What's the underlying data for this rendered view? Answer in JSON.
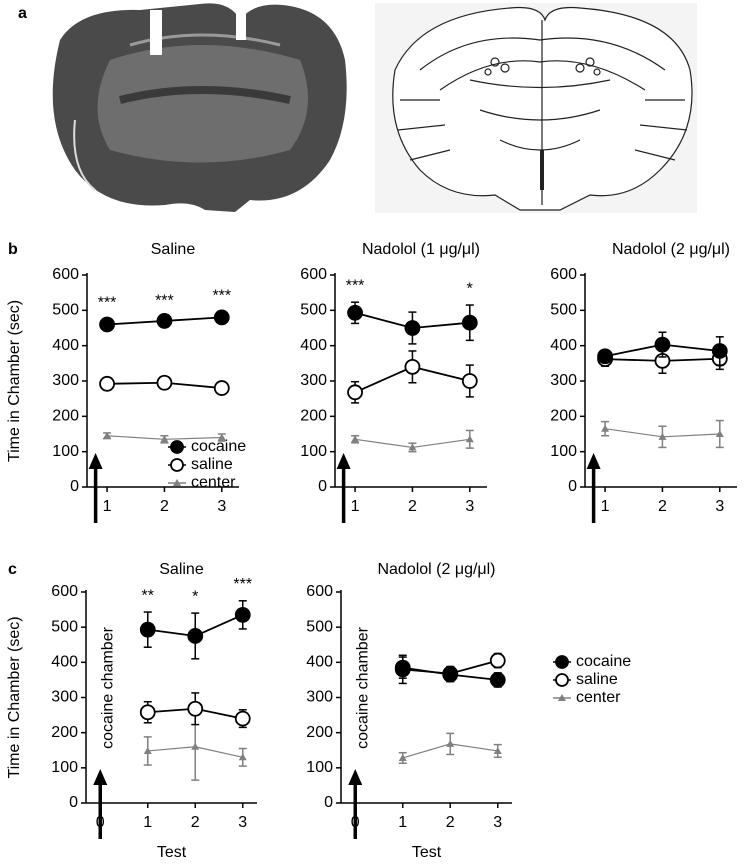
{
  "panel_labels": [
    "a",
    "b",
    "c"
  ],
  "chart_data": [
    {
      "type": "line",
      "title": "Saline",
      "ylabel": "Time in Chamber (sec)",
      "x": [
        1,
        2,
        3
      ],
      "xlim": [
        0.65,
        3.3
      ],
      "xticks": [
        1,
        2,
        3
      ],
      "ylim": [
        0,
        600
      ],
      "yticks": [
        0,
        100,
        200,
        300,
        400,
        500,
        600
      ],
      "legend": "lower right",
      "series": [
        {
          "name": "cocaine",
          "color": "#000000",
          "marker": "filled",
          "values": [
            460,
            470,
            480
          ],
          "errors": [
            15,
            10,
            15
          ]
        },
        {
          "name": "saline",
          "color": "#000000",
          "marker": "open",
          "values": [
            292,
            295,
            280
          ],
          "errors": [
            12,
            10,
            12
          ]
        },
        {
          "name": "center",
          "color": "#808080",
          "marker": "triangle",
          "values": [
            145,
            135,
            140
          ],
          "errors": [
            8,
            10,
            10
          ]
        }
      ],
      "annotations": [
        {
          "text": "***",
          "x": 1
        },
        {
          "text": "***",
          "x": 2
        },
        {
          "text": "***",
          "x": 3
        }
      ],
      "arrow": {
        "x": 0.8
      }
    },
    {
      "type": "line",
      "title": "Nadolol (1 μg/μl)",
      "x": [
        1,
        2,
        3
      ],
      "xlim": [
        0.65,
        3.3
      ],
      "xticks": [
        1,
        2,
        3
      ],
      "ylim": [
        0,
        600
      ],
      "yticks": [
        0,
        100,
        200,
        300,
        400,
        500,
        600
      ],
      "series": [
        {
          "color": "#000000",
          "marker": "filled",
          "values": [
            493,
            450,
            465
          ],
          "errors": [
            30,
            45,
            50
          ]
        },
        {
          "color": "#000000",
          "marker": "open",
          "values": [
            268,
            340,
            300
          ],
          "errors": [
            30,
            45,
            45
          ]
        },
        {
          "color": "#808080",
          "marker": "triangle",
          "values": [
            135,
            112,
            135
          ],
          "errors": [
            10,
            12,
            25
          ]
        }
      ],
      "annotations": [
        {
          "text": "***",
          "x": 1
        },
        {
          "text": "*",
          "x": 3
        }
      ],
      "arrow": {
        "x": 0.8
      }
    },
    {
      "type": "line",
      "title": "Nadolol (2 μg/μl)",
      "x": [
        1,
        2,
        3
      ],
      "xlim": [
        0.65,
        3.3
      ],
      "xticks": [
        1,
        2,
        3
      ],
      "ylim": [
        0,
        600
      ],
      "yticks": [
        0,
        100,
        200,
        300,
        400,
        500,
        600
      ],
      "series": [
        {
          "color": "#000000",
          "marker": "filled",
          "values": [
            370,
            403,
            385
          ],
          "errors": [
            15,
            35,
            40
          ]
        },
        {
          "color": "#000000",
          "marker": "open",
          "values": [
            362,
            357,
            363
          ],
          "errors": [
            20,
            35,
            30
          ]
        },
        {
          "color": "#808080",
          "marker": "triangle",
          "values": [
            165,
            142,
            150
          ],
          "errors": [
            20,
            30,
            38
          ]
        }
      ],
      "arrow": {
        "x": 0.8
      }
    },
    {
      "type": "line",
      "title": "Saline",
      "ylabel": "Time in Chamber (sec)",
      "xlabel": "Test",
      "x": [
        1,
        2,
        3
      ],
      "xlim": [
        -0.3,
        3.3
      ],
      "xticks": [
        0,
        1,
        2,
        3
      ],
      "ylim": [
        0,
        600
      ],
      "yticks": [
        0,
        100,
        200,
        300,
        400,
        500,
        600
      ],
      "series": [
        {
          "color": "#000000",
          "marker": "filled",
          "values": [
            493,
            475,
            535
          ],
          "errors": [
            50,
            65,
            40
          ]
        },
        {
          "color": "#000000",
          "marker": "open",
          "values": [
            258,
            268,
            240
          ],
          "errors": [
            30,
            45,
            25
          ]
        },
        {
          "color": "#808080",
          "marker": "triangle",
          "values": [
            148,
            160,
            130
          ],
          "errors": [
            40,
            95,
            25
          ]
        }
      ],
      "annotations": [
        {
          "text": "**",
          "x": 1
        },
        {
          "text": "*",
          "x": 2
        },
        {
          "text": "***",
          "x": 3
        }
      ],
      "arrow": {
        "x": 0,
        "label": "cocaine chamber"
      }
    },
    {
      "type": "line",
      "title": "Nadolol (2 μg/μl)",
      "xlabel": "Test",
      "x": [
        1,
        2,
        3
      ],
      "xlim": [
        -0.3,
        3.3
      ],
      "xticks": [
        0,
        1,
        2,
        3
      ],
      "ylim": [
        0,
        600
      ],
      "yticks": [
        0,
        100,
        200,
        300,
        400,
        500,
        600
      ],
      "legend": "right",
      "series": [
        {
          "name": "cocaine",
          "color": "#000000",
          "marker": "filled",
          "values": [
            385,
            365,
            350
          ],
          "errors": [
            30,
            20,
            20
          ]
        },
        {
          "name": "saline",
          "color": "#000000",
          "marker": "open",
          "values": [
            380,
            368,
            405
          ],
          "errors": [
            40,
            20,
            20
          ]
        },
        {
          "name": "center",
          "color": "#808080",
          "marker": "triangle",
          "values": [
            128,
            168,
            148
          ],
          "errors": [
            15,
            30,
            18
          ]
        }
      ],
      "arrow": {
        "x": 0,
        "label": "cocaine chamber"
      }
    }
  ]
}
